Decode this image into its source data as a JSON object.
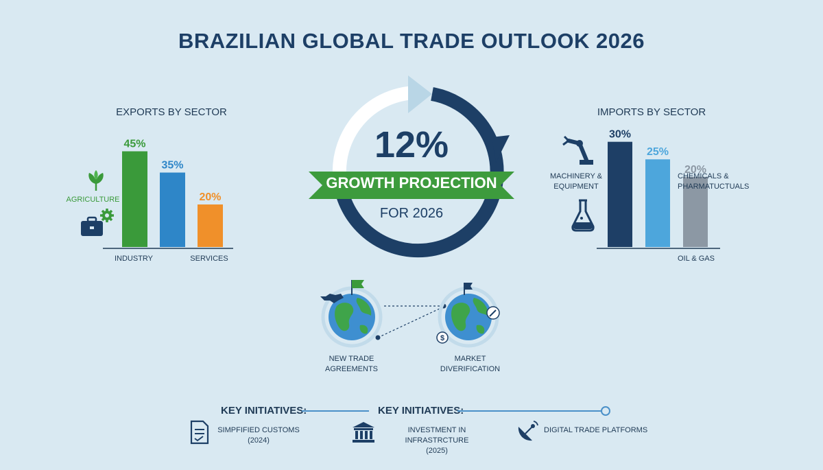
{
  "title": "BRAZILIAN GLOBAL TRADE OUTLOOK 2026",
  "chart_data": [
    {
      "type": "bar",
      "title": "EXPORTS BY SECTOR",
      "categories": [
        "AGRICULTURE",
        "INDUSTRY",
        "SERVICES"
      ],
      "values": [
        45,
        35,
        20
      ],
      "value_labels": [
        "45%",
        "35%",
        "20%"
      ],
      "colors": [
        "#3a9a3a",
        "#2e86c8",
        "#f0902a"
      ],
      "ylim": [
        0,
        50
      ]
    },
    {
      "type": "bar",
      "title": "IMPORTS BY SECTOR",
      "categories": [
        "MACHINERY & EQUIPMENT",
        "CHEMICALS & PHARMATUCTUALS",
        "OIL & GAS"
      ],
      "values": [
        30,
        25,
        20
      ],
      "value_labels": [
        "30%",
        "25%",
        "20%"
      ],
      "colors": [
        "#1e3f66",
        "#4da6dc",
        "#8c98a4"
      ],
      "ylim": [
        0,
        36
      ]
    }
  ],
  "growth": {
    "value": "12%",
    "label": "GROWTH PROJECTION",
    "sub": "FOR 2026"
  },
  "globes": {
    "left": "NEW TRADE AGREEMENTS",
    "right": "MARKET DIVERIFICATION"
  },
  "initiatives": {
    "header": "KEY INITIATIVES:",
    "items": [
      {
        "line1": "SIMPFIFIED CUSTOMS",
        "line2": "(2024)",
        "icon": "document-icon"
      },
      {
        "line1": "INVESTMENT IN INFRASTRCTURE",
        "line2": "(2025)",
        "icon": "bank-icon"
      },
      {
        "line1": "DIGITAL TRADE PLATFORMS",
        "line2": "",
        "icon": "satellite-dish-icon"
      }
    ]
  },
  "colors": {
    "background": "#d9e9f2",
    "navy": "#1d3f66",
    "green": "#3a9a3a",
    "banner_green": "#3d9b3d"
  }
}
